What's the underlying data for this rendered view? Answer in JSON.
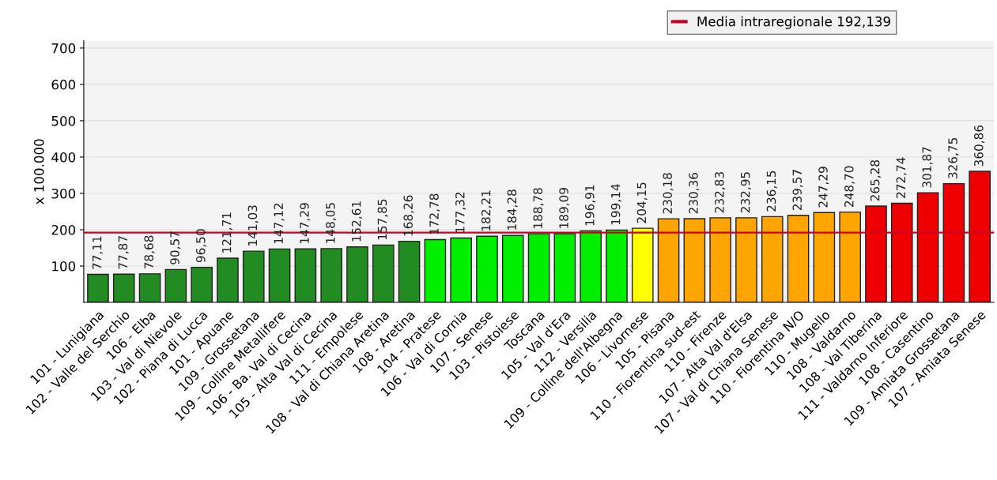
{
  "chart_data": {
    "type": "bar",
    "ylabel": "x 100.000",
    "categories": [
      "101 - Lunigiana",
      "102 - Valle del Serchio",
      "106 - Elba",
      "103 - Val di Nievole",
      "102 - Piana di Lucca",
      "101 - Apuane",
      "109 - Grossetana",
      "109 - Colline Metallifere",
      "106 - Ba. Val di Cecina",
      "105 - Alta Val di Cecina",
      "111 - Empolese",
      "108 - Val di Chiana Aretina",
      "108 - Aretina",
      "104 - Pratese",
      "106 - Val di Cornia",
      "107 - Senese",
      "103 - Pistoiese",
      "Toscana",
      "105 - Val d'Era",
      "112 - Versilia",
      "109 - Colline dell'Albegna",
      "106 - Livornese",
      "105 - Pisana",
      "110 - Fiorentina sud-est",
      "110 - Firenze",
      "107 - Alta Val d'Elsa",
      "107 - Val di Chiana Senese",
      "110 - Fiorentina N/O",
      "110 - Mugello",
      "108 - Valdarno",
      "108 - Val Tiberina",
      "111 - Valdarno Inferiore",
      "108 - Casentino",
      "109 - Amiata Grossetana",
      "107 - Amiata Senese"
    ],
    "values": [
      77.11,
      77.87,
      78.68,
      90.57,
      96.5,
      121.71,
      141.03,
      147.12,
      147.29,
      148.05,
      152.61,
      157.85,
      168.26,
      172.78,
      177.32,
      182.21,
      184.28,
      188.78,
      189.09,
      196.91,
      199.14,
      204.15,
      230.18,
      230.36,
      232.83,
      232.95,
      236.15,
      239.57,
      247.29,
      248.7,
      265.28,
      272.74,
      301.87,
      326.75,
      360.86
    ],
    "value_labels": [
      "77,11",
      "77,87",
      "78,68",
      "90,57",
      "96,50",
      "121,71",
      "141,03",
      "147,12",
      "147,29",
      "148,05",
      "152,61",
      "157,85",
      "168,26",
      "172,78",
      "177,32",
      "182,21",
      "184,28",
      "188,78",
      "189,09",
      "196,91",
      "199,14",
      "204,15",
      "230,18",
      "230,36",
      "232,83",
      "232,95",
      "236,15",
      "239,57",
      "247,29",
      "248,70",
      "265,28",
      "272,74",
      "301,87",
      "326,75",
      "360,86"
    ],
    "colors": [
      "#228b22",
      "#228b22",
      "#228b22",
      "#228b22",
      "#228b22",
      "#228b22",
      "#228b22",
      "#228b22",
      "#228b22",
      "#228b22",
      "#228b22",
      "#228b22",
      "#228b22",
      "#00ee00",
      "#00ee00",
      "#00ee00",
      "#00ee00",
      "#00ee00",
      "#00ee00",
      "#00ee00",
      "#00ee00",
      "#ffff00",
      "#ffa500",
      "#ffa500",
      "#ffa500",
      "#ffa500",
      "#ffa500",
      "#ffa500",
      "#ffa500",
      "#ffa500",
      "#ee0000",
      "#ee0000",
      "#ee0000",
      "#ee0000",
      "#ee0000"
    ],
    "ylim": [
      0,
      720
    ],
    "yticks": [
      100,
      200,
      300,
      400,
      500,
      600,
      700
    ],
    "grid": "y",
    "legend": "top right",
    "ref_lines": [
      {
        "axis": "y",
        "value": 192.139,
        "label": "Media intraregionale 192,139",
        "color": "#cc0022"
      }
    ]
  }
}
